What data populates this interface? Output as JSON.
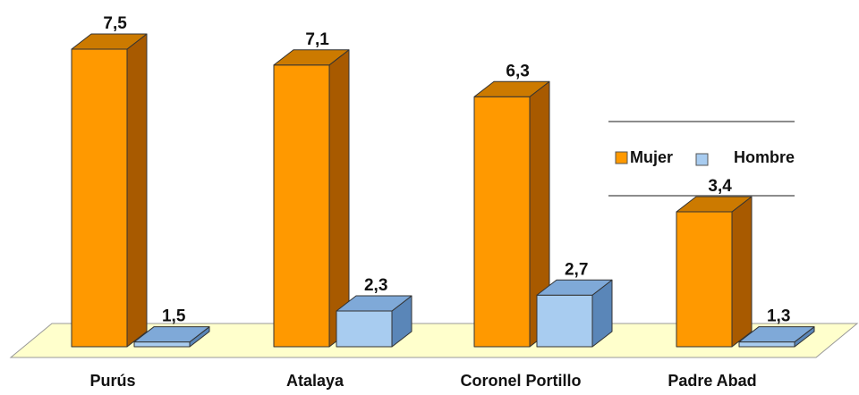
{
  "chart_data": {
    "type": "bar",
    "categories": [
      "Purús",
      "Atalaya",
      "Coronel Portillo",
      "Padre Abad"
    ],
    "series": [
      {
        "name": "Mujer",
        "values": [
          "7,5",
          "7,1",
          "6,3",
          "3,4"
        ]
      },
      {
        "name": "Hombre",
        "values": [
          "1,5",
          "2,3",
          "2,7",
          "1,3"
        ]
      }
    ],
    "numeric_series": [
      [
        7.5,
        7.1,
        6.3,
        3.4
      ],
      [
        1.5,
        2.3,
        2.7,
        1.3
      ]
    ],
    "legend": {
      "placement": "right",
      "labels": [
        "Mujer",
        "Hombre"
      ]
    },
    "colors": {
      "mujer_front": "#FF9900",
      "mujer_side": "#A85A00",
      "mujer_top": "#CC7A00",
      "hombre_front": "#A8CCF0",
      "hombre_side": "#5A86B8",
      "hombre_top": "#7FA9D8",
      "floor": "#FFFFCC"
    },
    "ylim": [
      0,
      8
    ],
    "grid": false
  }
}
